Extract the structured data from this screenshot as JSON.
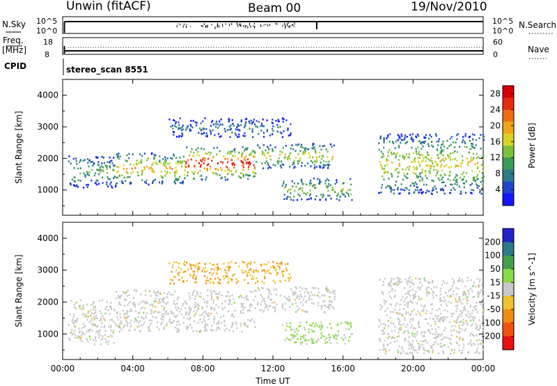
{
  "header": {
    "station": "Unwin (fitACF)",
    "beam": "Beam 00",
    "date": "19/Nov/2010"
  },
  "nsky_panel": {
    "left_label": "N.Sky",
    "right_label": "N.Search",
    "left_ticks": [
      "10^5",
      "10^0"
    ],
    "right_ticks": [
      "10^5",
      "10^0"
    ]
  },
  "freq_panel": {
    "left_label_1": "Freq.",
    "left_label_2": "[MHz]",
    "right_label": "Nave",
    "left_ticks": [
      "18",
      "8"
    ],
    "right_ticks": [
      "60",
      "0"
    ]
  },
  "cpid": {
    "label": "CPID",
    "value": "stereo_scan 8551"
  },
  "chart_data": [
    {
      "type": "heatmap",
      "title": "",
      "ylabel": "Slant Range [km]",
      "xlabel": "",
      "x_ticks": [
        "00:00",
        "04:00",
        "08:00",
        "12:00",
        "16:00",
        "20:00",
        "00:00"
      ],
      "y_ticks": [
        1000,
        2000,
        3000,
        4000
      ],
      "xlim_hours": [
        0,
        24
      ],
      "ylim": [
        200,
        4500
      ],
      "colorbar": {
        "label": "Power [dB]",
        "ticks": [
          "4",
          "8",
          "12",
          "16",
          "20",
          "24",
          "28"
        ],
        "range": [
          0,
          30
        ],
        "colors": [
          "#1414ff",
          "#2244cc",
          "#2c7a8a",
          "#3a9a5a",
          "#7cc13a",
          "#d9d424",
          "#f0a51a",
          "#f06a14",
          "#e82a12",
          "#d80000"
        ]
      },
      "echo_regions": [
        {
          "start_hour": 0.3,
          "end_hour": 3.0,
          "range_low": 1100,
          "range_high": 2100,
          "power": 10
        },
        {
          "start_hour": 3.0,
          "end_hour": 7.0,
          "range_low": 1200,
          "range_high": 2200,
          "power": 16
        },
        {
          "start_hour": 7.0,
          "end_hour": 11.0,
          "range_low": 1350,
          "range_high": 2400,
          "power": 22
        },
        {
          "start_hour": 11.0,
          "end_hour": 15.5,
          "range_low": 1700,
          "range_high": 2500,
          "power": 14
        },
        {
          "start_hour": 6.0,
          "end_hour": 13.0,
          "range_low": 2700,
          "range_high": 3300,
          "power": 6
        },
        {
          "start_hour": 12.5,
          "end_hour": 16.5,
          "range_low": 700,
          "range_high": 1400,
          "power": 12
        },
        {
          "start_hour": 18.0,
          "end_hour": 24.0,
          "range_low": 900,
          "range_high": 2800,
          "power": 14
        }
      ]
    },
    {
      "type": "heatmap",
      "title": "",
      "ylabel": "Slant Range [km]",
      "xlabel": "Time UT",
      "x_ticks": [
        "00:00",
        "04:00",
        "08:00",
        "12:00",
        "16:00",
        "20:00",
        "00:00"
      ],
      "y_ticks": [
        1000,
        2000,
        3000,
        4000
      ],
      "xlim_hours": [
        0,
        24
      ],
      "ylim": [
        200,
        4500
      ],
      "colorbar": {
        "label": "Velocity [m s^-1]",
        "ticks": [
          "200",
          "100",
          "50",
          "15",
          "-15",
          "-50",
          "-100",
          "-200"
        ],
        "range": [
          -250,
          250
        ],
        "colors": [
          "#2222cc",
          "#2a7a8a",
          "#3f9f4f",
          "#88dd44",
          "#c8c8c8",
          "#f0c030",
          "#f08c14",
          "#f05010",
          "#e81010"
        ]
      },
      "echo_regions": [
        {
          "start_hour": 0.3,
          "end_hour": 3.0,
          "range_low": 700,
          "range_high": 2100,
          "velocity": 0
        },
        {
          "start_hour": 3.0,
          "end_hour": 11.0,
          "range_low": 1100,
          "range_high": 2400,
          "velocity": 0
        },
        {
          "start_hour": 11.0,
          "end_hour": 15.5,
          "range_low": 1700,
          "range_high": 2500,
          "velocity": 0
        },
        {
          "start_hour": 6.0,
          "end_hour": 13.0,
          "range_low": 2600,
          "range_high": 3300,
          "velocity": -40
        },
        {
          "start_hour": 12.5,
          "end_hour": 16.5,
          "range_low": 700,
          "range_high": 1400,
          "velocity": 20
        },
        {
          "start_hour": 18.0,
          "end_hour": 24.0,
          "range_low": 400,
          "range_high": 2800,
          "velocity": 0
        }
      ]
    }
  ],
  "colors": {
    "missing": "#ffffff",
    "ground_scatter": "#c8c8c8"
  }
}
